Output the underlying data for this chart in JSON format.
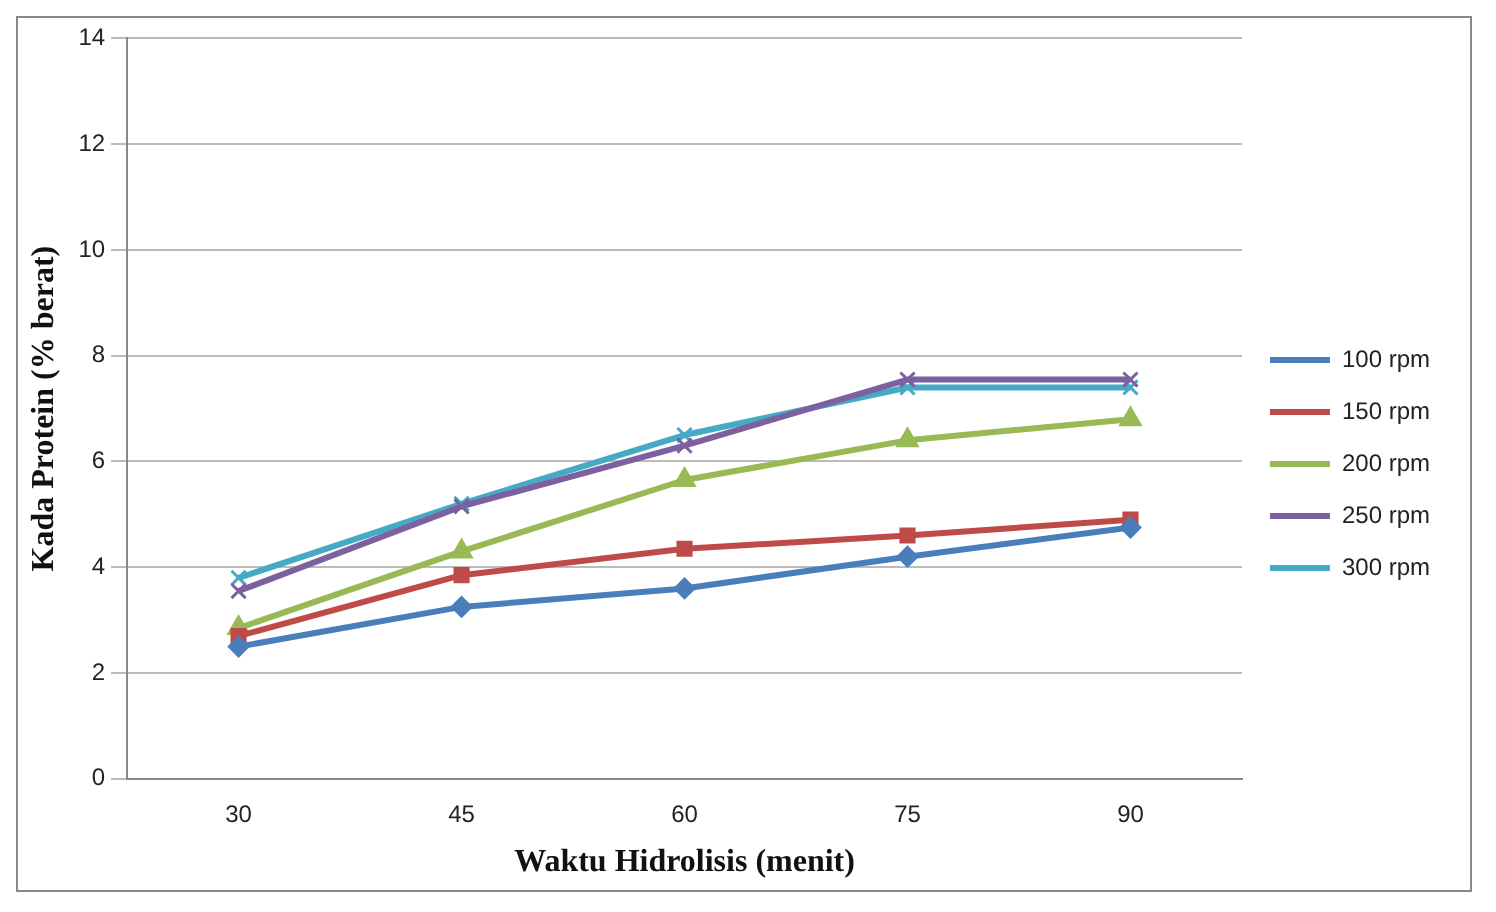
{
  "chart_data": {
    "type": "line",
    "xlabel": "Waktu Hidrolisis (menit)",
    "ylabel": "Kada Protein (% berat)",
    "categories": [
      "30",
      "45",
      "60",
      "75",
      "90"
    ],
    "ylim": [
      0,
      14
    ],
    "yticks": [
      0,
      2,
      4,
      6,
      8,
      10,
      12,
      14
    ],
    "grid": "y",
    "legend": "right",
    "series": [
      {
        "name": "100 rpm",
        "color": "#4a7ebb",
        "marker": "diamond",
        "values": [
          2.5,
          3.25,
          3.6,
          4.2,
          4.75
        ]
      },
      {
        "name": "150 rpm",
        "color": "#be4b48",
        "marker": "square",
        "values": [
          2.7,
          3.85,
          4.35,
          4.6,
          4.9
        ]
      },
      {
        "name": "200 rpm",
        "color": "#98b954",
        "marker": "triangle",
        "values": [
          2.85,
          4.3,
          5.65,
          6.4,
          6.8
        ]
      },
      {
        "name": "250 rpm",
        "color": "#7d60a0",
        "marker": "cross",
        "values": [
          3.55,
          5.15,
          6.3,
          7.55,
          7.55
        ]
      },
      {
        "name": "300 rpm",
        "color": "#46aac5",
        "marker": "cross",
        "values": [
          3.8,
          5.2,
          6.5,
          7.4,
          7.4
        ]
      }
    ]
  }
}
